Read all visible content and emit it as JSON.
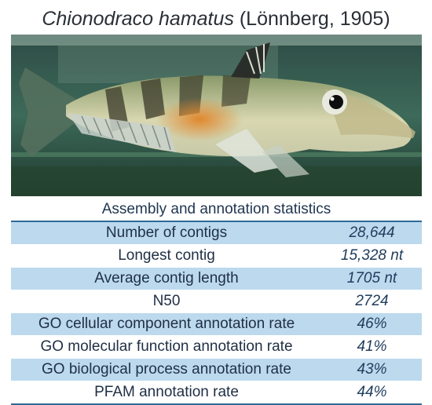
{
  "title": {
    "species": "Chionodraco hamatus",
    "authority": " (Lönnberg, 1905)"
  },
  "photo": {
    "subject": "fish-photo"
  },
  "table": {
    "caption": "Assembly and annotation statistics",
    "rows": [
      {
        "label": "Number of contigs",
        "value": "28,644"
      },
      {
        "label": "Longest contig",
        "value": "15,328 nt"
      },
      {
        "label": "Average contig length",
        "value": "1705 nt"
      },
      {
        "label": "N50",
        "value": "2724"
      },
      {
        "label": "GO cellular component annotation rate",
        "value": "46%"
      },
      {
        "label": "GO molecular function annotation rate",
        "value": "41%"
      },
      {
        "label": "GO biological process annotation rate",
        "value": "43%"
      },
      {
        "label": "PFAM annotation rate",
        "value": "44%"
      }
    ]
  },
  "colors": {
    "row_shade": "#bcd9ee",
    "rule": "#2e6b96"
  }
}
